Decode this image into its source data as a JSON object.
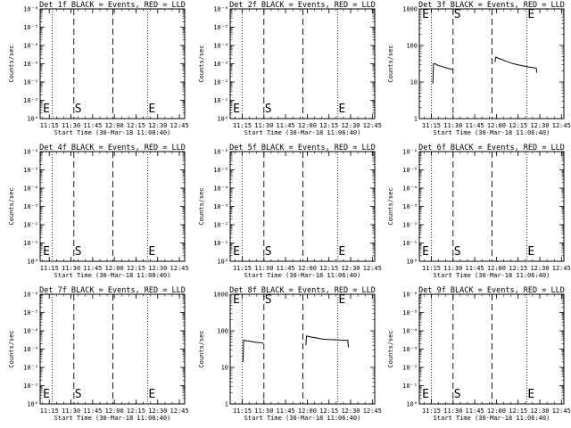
{
  "chart_data": [
    {
      "type": "line",
      "title": "Det 1f BLACK = Events, RED = LLD",
      "xlabel": "Start Time (30-Mar-18 11:08:40)",
      "ylabel": "Counts/sec",
      "x_ticks": [
        "11:15",
        "11:30",
        "11:45",
        "12:00",
        "12:15",
        "12:30",
        "12:45"
      ],
      "x_range": [
        "11:08:40",
        "12:48:40"
      ],
      "y_scale": "log",
      "y_ticks": [
        "10⁰",
        "10⁻¹",
        "10⁻²",
        "10⁻³",
        "10⁻⁴",
        "10⁻⁵",
        "10⁻⁶"
      ],
      "y_ticks_display": "negative-exponents",
      "markers": {
        "dotted": [
          "11:17",
          "12:23"
        ],
        "dashed": [
          "11:32",
          "11:59"
        ]
      },
      "labels": [
        {
          "text": "E",
          "x": "11:10"
        },
        {
          "text": "S",
          "x": "11:32"
        },
        {
          "text": "E",
          "x": "12:23"
        }
      ],
      "series": []
    },
    {
      "type": "line",
      "title": "Det 2f BLACK = Events, RED = LLD",
      "xlabel": "Start Time (30-Mar-18 11:06:40)",
      "ylabel": "Counts/sec",
      "x_ticks": [
        "11:15",
        "11:30",
        "11:45",
        "12:00",
        "12:15",
        "12:30",
        "12:45"
      ],
      "x_range": [
        "11:06:40",
        "12:46:40"
      ],
      "y_scale": "log",
      "y_ticks": [
        "10⁰",
        "10⁻¹",
        "10⁻²",
        "10⁻³",
        "10⁻⁴",
        "10⁻⁵",
        "10⁻⁶"
      ],
      "y_ticks_display": "negative-exponents",
      "markers": {
        "dotted": [
          "11:15",
          "12:21"
        ],
        "dashed": [
          "11:30",
          "11:57"
        ]
      },
      "labels": [
        {
          "text": "E",
          "x": "11:08"
        },
        {
          "text": "S",
          "x": "11:30"
        },
        {
          "text": "E",
          "x": "12:21"
        }
      ],
      "series": []
    },
    {
      "type": "line",
      "title": "Det 3f BLACK = Events, RED = LLD",
      "xlabel": "Start Time (30-Mar-18 11:06:40)",
      "ylabel": "Counts/sec",
      "x_ticks": [
        "11:15",
        "11:30",
        "11:45",
        "12:00",
        "12:15",
        "12:30",
        "12:45"
      ],
      "x_range": [
        "11:06:40",
        "12:46:40"
      ],
      "y_scale": "log",
      "ylim": [
        1,
        1000
      ],
      "y_ticks": [
        "1",
        "10",
        "100",
        "1000"
      ],
      "markers": {
        "dotted": [
          "11:15",
          "12:21"
        ],
        "dashed": [
          "11:30",
          "11:57"
        ]
      },
      "labels": [
        {
          "text": "E",
          "x": "11:08"
        },
        {
          "text": "S",
          "x": "11:30"
        },
        {
          "text": "E",
          "x": "12:21"
        }
      ],
      "series": [
        {
          "points": [
            [
              "11:16:00",
              9
            ],
            [
              "11:16:30",
              32
            ],
            [
              "11:18:00",
              31
            ],
            [
              "11:20:00",
              28
            ],
            [
              "11:22:00",
              27
            ],
            [
              "11:24:00",
              25
            ],
            [
              "11:26:00",
              24
            ],
            [
              "11:28:00",
              23
            ],
            [
              "11:29:30",
              22
            ]
          ]
        },
        {
          "points": [
            [
              "11:59:00",
              35
            ],
            [
              "11:59:30",
              48
            ],
            [
              "12:02:00",
              44
            ],
            [
              "12:06:00",
              38
            ],
            [
              "12:10:00",
              33
            ],
            [
              "12:14:00",
              30
            ],
            [
              "12:18:00",
              28
            ],
            [
              "12:22:00",
              26
            ],
            [
              "12:25:00",
              25
            ],
            [
              "12:27:30",
              24
            ],
            [
              "12:28:00",
              18
            ]
          ]
        }
      ]
    },
    {
      "type": "line",
      "title": "Det 4f BLACK = Events, RED = LLD",
      "xlabel": "Start Time (30-Mar-18 11:08:40)",
      "ylabel": "Counts/sec",
      "x_ticks": [
        "11:15",
        "11:30",
        "11:45",
        "12:00",
        "12:15",
        "12:30",
        "12:45"
      ],
      "x_range": [
        "11:08:40",
        "12:48:40"
      ],
      "y_scale": "log",
      "y_ticks": [
        "10⁰",
        "10⁻¹",
        "10⁻²",
        "10⁻³",
        "10⁻⁴",
        "10⁻⁵",
        "10⁻⁶"
      ],
      "y_ticks_display": "negative-exponents",
      "markers": {
        "dotted": [
          "11:17",
          "12:23"
        ],
        "dashed": [
          "11:32",
          "11:59"
        ]
      },
      "labels": [
        {
          "text": "E",
          "x": "11:10"
        },
        {
          "text": "S",
          "x": "11:32"
        },
        {
          "text": "E",
          "x": "12:23"
        }
      ],
      "series": []
    },
    {
      "type": "line",
      "title": "Det 5f BLACK = Events, RED = LLD",
      "xlabel": "Start Time (30-Mar-18 11:06:40)",
      "ylabel": "Counts/sec",
      "x_ticks": [
        "11:15",
        "11:30",
        "11:45",
        "12:00",
        "12:15",
        "12:30",
        "12:45"
      ],
      "x_range": [
        "11:06:40",
        "12:46:40"
      ],
      "y_scale": "log",
      "y_ticks": [
        "10⁰",
        "10⁻¹",
        "10⁻²",
        "10⁻³",
        "10⁻⁴",
        "10⁻⁵",
        "10⁻⁶"
      ],
      "y_ticks_display": "negative-exponents",
      "markers": {
        "dotted": [
          "11:15",
          "12:21"
        ],
        "dashed": [
          "11:30",
          "11:57"
        ]
      },
      "labels": [
        {
          "text": "E",
          "x": "11:08"
        },
        {
          "text": "S",
          "x": "11:30"
        },
        {
          "text": "E",
          "x": "12:21"
        }
      ],
      "series": []
    },
    {
      "type": "line",
      "title": "Det 6f BLACK = Events, RED = LLD",
      "xlabel": "Start Time (30-Mar-18 11:06:40)",
      "ylabel": "Counts/sec",
      "x_ticks": [
        "11:15",
        "11:30",
        "11:45",
        "12:00",
        "12:15",
        "12:30",
        "12:45"
      ],
      "x_range": [
        "11:06:40",
        "12:46:40"
      ],
      "y_scale": "log",
      "y_ticks": [
        "10⁰",
        "10⁻¹",
        "10⁻²",
        "10⁻³",
        "10⁻⁴",
        "10⁻⁵",
        "10⁻⁶"
      ],
      "y_ticks_display": "negative-exponents",
      "markers": {
        "dotted": [
          "11:15",
          "12:21"
        ],
        "dashed": [
          "11:30",
          "11:57"
        ]
      },
      "labels": [
        {
          "text": "E",
          "x": "11:08"
        },
        {
          "text": "S",
          "x": "11:30"
        },
        {
          "text": "E",
          "x": "12:21"
        }
      ],
      "series": []
    },
    {
      "type": "line",
      "title": "Det 7f BLACK = Events, RED = LLD",
      "xlabel": "Start Time (30-Mar-18 11:08:40)",
      "ylabel": "Counts/sec",
      "x_ticks": [
        "11:15",
        "11:30",
        "11:45",
        "12:00",
        "12:15",
        "12:30",
        "12:45"
      ],
      "x_range": [
        "11:08:40",
        "12:48:40"
      ],
      "y_scale": "log",
      "y_ticks": [
        "10⁰",
        "10⁻¹",
        "10⁻²",
        "10⁻³",
        "10⁻⁴",
        "10⁻⁵",
        "10⁻⁶"
      ],
      "y_ticks_display": "negative-exponents",
      "markers": {
        "dotted": [
          "11:17",
          "12:23"
        ],
        "dashed": [
          "11:32",
          "11:59"
        ]
      },
      "labels": [
        {
          "text": "E",
          "x": "11:10"
        },
        {
          "text": "S",
          "x": "11:32"
        },
        {
          "text": "E",
          "x": "12:23"
        }
      ],
      "series": []
    },
    {
      "type": "line",
      "title": "Det 8f BLACK = Events, RED = LLD",
      "xlabel": "Start Time (30-Mar-18 11:06:40)",
      "ylabel": "Counts/sec",
      "x_ticks": [
        "11:15",
        "11:30",
        "11:45",
        "12:00",
        "12:15",
        "12:30",
        "12:45"
      ],
      "x_range": [
        "11:06:40",
        "12:46:40"
      ],
      "y_scale": "log",
      "ylim": [
        1,
        1000
      ],
      "y_ticks": [
        "1",
        "10",
        "100",
        "1000"
      ],
      "markers": {
        "dotted": [
          "11:15",
          "12:21"
        ],
        "dashed": [
          "11:30",
          "11:57"
        ]
      },
      "labels": [
        {
          "text": "E",
          "x": "11:08"
        },
        {
          "text": "S",
          "x": "11:30"
        },
        {
          "text": "E",
          "x": "12:21"
        }
      ],
      "series": [
        {
          "points": [
            [
              "11:15:30",
              14
            ],
            [
              "11:16:00",
              55
            ],
            [
              "11:18:00",
              53
            ],
            [
              "11:20:00",
              52
            ],
            [
              "11:22:00",
              50
            ],
            [
              "11:24:00",
              49
            ],
            [
              "11:26:00",
              48
            ],
            [
              "11:28:00",
              47
            ],
            [
              "11:29:30",
              46
            ]
          ]
        },
        {
          "points": [
            [
              "11:59:00",
              40
            ],
            [
              "11:59:30",
              72
            ],
            [
              "12:02:00",
              68
            ],
            [
              "12:06:00",
              64
            ],
            [
              "12:10:00",
              60
            ],
            [
              "12:14:00",
              58
            ],
            [
              "12:18:00",
              57
            ],
            [
              "12:22:00",
              56
            ],
            [
              "12:25:00",
              55
            ],
            [
              "12:28:00",
              55
            ],
            [
              "12:28:30",
              35
            ]
          ]
        }
      ]
    },
    {
      "type": "line",
      "title": "Det 9f BLACK = Events, RED = LLD",
      "xlabel": "Start Time (30-Mar-18 11:06:40)",
      "ylabel": "Counts/sec",
      "x_ticks": [
        "11:15",
        "11:30",
        "11:45",
        "12:00",
        "12:15",
        "12:30",
        "12:45"
      ],
      "x_range": [
        "11:06:40",
        "12:46:40"
      ],
      "y_scale": "log",
      "y_ticks": [
        "10⁰",
        "10⁻¹",
        "10⁻²",
        "10⁻³",
        "10⁻⁴",
        "10⁻⁵",
        "10⁻⁶"
      ],
      "y_ticks_display": "negative-exponents",
      "markers": {
        "dotted": [
          "11:15",
          "12:21"
        ],
        "dashed": [
          "11:30",
          "11:57"
        ]
      },
      "labels": [
        {
          "text": "E",
          "x": "11:08"
        },
        {
          "text": "S",
          "x": "11:30"
        },
        {
          "text": "E",
          "x": "12:21"
        }
      ],
      "series": []
    }
  ]
}
